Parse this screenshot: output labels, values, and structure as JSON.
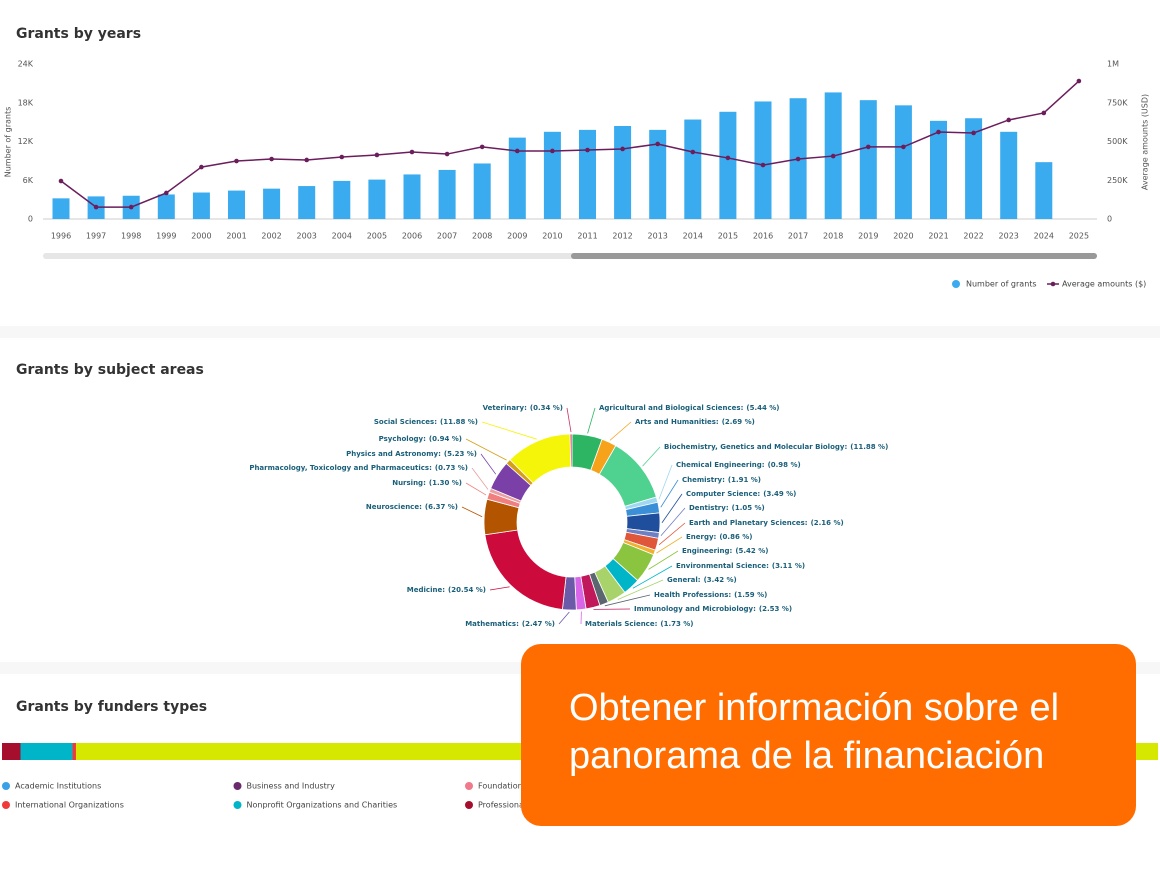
{
  "chart_data": [
    {
      "type": "bar_line",
      "title": "Grants by years",
      "categories": [
        "1996",
        "1997",
        "1998",
        "1999",
        "2000",
        "2001",
        "2002",
        "2003",
        "2004",
        "2005",
        "2006",
        "2007",
        "2008",
        "2009",
        "2010",
        "2011",
        "2012",
        "2013",
        "2014",
        "2015",
        "2016",
        "2017",
        "2018",
        "2019",
        "2020",
        "2021",
        "2022",
        "2023",
        "2024",
        "2025"
      ],
      "ylabel": "Number of grants",
      "y2label": "Average amounts (USD)",
      "ylim": [
        0,
        24000
      ],
      "yticks": [
        0,
        {
          "value": 6000,
          "label": "6K"
        },
        {
          "value": 12000,
          "label": "12K"
        },
        {
          "value": 18000,
          "label": "18K"
        },
        {
          "value": 24000,
          "label": "24K"
        }
      ],
      "y2lim": [
        0,
        1000000
      ],
      "y2ticks": [
        0,
        {
          "value": 250000,
          "label": "250K"
        },
        {
          "value": 500000,
          "label": "500K"
        },
        {
          "value": 750000,
          "label": "750K"
        },
        {
          "value": 1000000,
          "label": "1M"
        }
      ],
      "grid": false,
      "series": [
        {
          "name": "Number of grants",
          "type": "bar",
          "color": "#3aabee",
          "values": [
            3200,
            3500,
            3600,
            3800,
            4100,
            4400,
            4700,
            5100,
            5900,
            6100,
            6900,
            7600,
            8600,
            12600,
            13500,
            13800,
            14400,
            13800,
            15400,
            16600,
            18200,
            18700,
            19600,
            18400,
            17600,
            15200,
            15600,
            13500,
            8800,
            null
          ]
        },
        {
          "name": "Average amounts ($)",
          "type": "line",
          "axis": "y2",
          "color": "#6b1d5c",
          "values": [
            245000,
            77000,
            77000,
            168000,
            335000,
            374000,
            387000,
            381000,
            400000,
            413000,
            432000,
            419000,
            465000,
            439000,
            439000,
            445000,
            452000,
            484000,
            432000,
            394000,
            348000,
            387000,
            406000,
            465000,
            465000,
            561000,
            555000,
            639000,
            684000,
            890000
          ]
        }
      ]
    },
    {
      "type": "donut",
      "title": "Grants by subject areas",
      "categories": [
        "Agricultural and Biological Sciences:",
        "Arts and Humanities:",
        "Biochemistry, Genetics and Molecular Biology:",
        "Chemical Engineering:",
        "Chemistry:",
        "Computer Science:",
        "Dentistry:",
        "Earth and Planetary Sciences:",
        "Energy:",
        "Engineering:",
        "Environmental Science:",
        "General:",
        "Health Professions:",
        "Immunology and Microbiology:",
        "Materials Science:",
        "Mathematics:",
        "Medicine:",
        "Neuroscience:",
        "Nursing:",
        "Pharmacology, Toxicology and Pharmaceutics:",
        "Physics and Astronomy:",
        "Psychology:",
        "Social Sciences:",
        "Veterinary:"
      ],
      "values": [
        5.44,
        2.69,
        11.88,
        0.98,
        1.91,
        3.49,
        1.05,
        2.16,
        0.86,
        5.42,
        3.11,
        3.42,
        1.59,
        2.53,
        1.73,
        2.47,
        20.54,
        6.37,
        1.3,
        0.73,
        5.23,
        0.94,
        11.88,
        0.34
      ],
      "value_labels": [
        "(5.44 %)",
        "(2.69 %)",
        "(11.88 %)",
        "(0.98 %)",
        "(1.91 %)",
        "(3.49 %)",
        "(1.05 %)",
        "(2.16 %)",
        "(0.86 %)",
        "(5.42 %)",
        "(3.11 %)",
        "(3.42 %)",
        "(1.59 %)",
        "(2.53 %)",
        "(1.73 %)",
        "(2.47 %)",
        "(20.54 %)",
        "(6.37 %)",
        "(1.30 %)",
        "(0.73 %)",
        "(5.23 %)",
        "(0.94 %)",
        "(11.88 %)",
        "(0.34 %)"
      ],
      "colors": [
        "#2db563",
        "#f7a21b",
        "#4fd18f",
        "#9fd8f0",
        "#3b8fd6",
        "#1f4e9c",
        "#6f7fc4",
        "#e0563a",
        "#f0b030",
        "#8bc53f",
        "#00b5c8",
        "#a8d36a",
        "#5a6670",
        "#c0185a",
        "#d966e8",
        "#6a5aa8",
        "#cc0a3c",
        "#b35400",
        "#f08080",
        "#e8a0a0",
        "#7b3fa8",
        "#d4a017",
        "#f5f50a",
        "#cc3366"
      ]
    },
    {
      "type": "stacked_bar",
      "title": "Grants by funders types",
      "segments": [
        {
          "color": "#a50f2d",
          "value": 1.6
        },
        {
          "color": "#00b5c8",
          "value": 4.5
        },
        {
          "color": "#f03a3a",
          "value": 0.3
        },
        {
          "color": "#d7e800",
          "value": 93.6
        }
      ],
      "legend": [
        {
          "name": "Academic Institutions",
          "color": "#3aa0e8"
        },
        {
          "name": "Business and Industry",
          "color": "#6b2a6b"
        },
        {
          "name": "Foundation",
          "color": "#f07a8a"
        },
        {
          "name": "International Organizations",
          "color": "#f03a3a"
        },
        {
          "name": "Nonprofit Organizations and Charities",
          "color": "#00b5c8"
        },
        {
          "name": "Professional",
          "color": "#a50f2d"
        }
      ]
    }
  ],
  "banner": {
    "lines": [
      "Obtener información sobre el",
      "panorama de la financiación"
    ]
  }
}
